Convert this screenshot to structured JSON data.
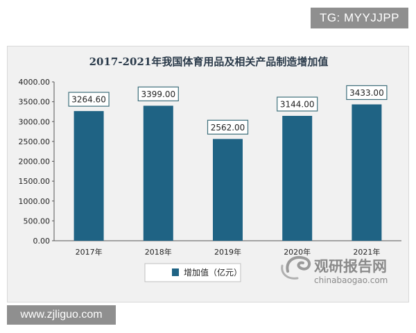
{
  "banner_top": "TG: MYYJJPP",
  "banner_bottom": "www.zjliguo.com",
  "watermark": {
    "name": "观研报告网",
    "url": "chinabaogao.com"
  },
  "colors": {
    "bar": "#1f6384",
    "frame_bg": "#f1f1f1",
    "banner": "#8f8f8f"
  },
  "chart_data": {
    "type": "bar",
    "title": "2017-2021年我国体育用品及相关产品制造增加值",
    "categories": [
      "2017年",
      "2018年",
      "2019年",
      "2020年",
      "2021年"
    ],
    "series": [
      {
        "name": "增加值（亿元）",
        "values": [
          3264.6,
          3399.0,
          2562.0,
          3144.0,
          3433.0
        ]
      }
    ],
    "value_labels": [
      "3264.60",
      "3399.00",
      "2562.00",
      "3144.00",
      "3433.00"
    ],
    "yticks": [
      "0.00",
      "500.00",
      "1000.00",
      "1500.00",
      "2000.00",
      "2500.00",
      "3000.00",
      "3500.00",
      "4000.00"
    ],
    "ylim": [
      0,
      4000
    ],
    "grid": false,
    "legend_position": "bottom-left"
  }
}
